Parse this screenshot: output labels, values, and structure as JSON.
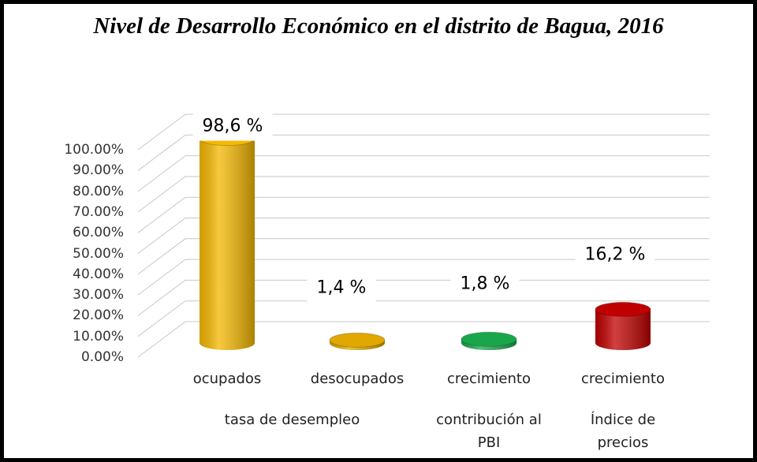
{
  "chart_data": {
    "type": "bar",
    "title": "Nivel de Desarrollo Económico en el distrito de Bagua, 2016",
    "categories": [
      "ocupados",
      "desocupados",
      "crecimiento",
      "crecimiento"
    ],
    "groups": [
      "tasa de desempleo",
      "contribución al PBI",
      "Índice de precios"
    ],
    "values": [
      98.6,
      1.4,
      1.8,
      16.2
    ],
    "value_labels": [
      "98,6 %",
      "1,4 %",
      "1,8 %",
      "16,2 %"
    ],
    "colors": [
      "#f5b800",
      "#e0a800",
      "#19a64a",
      "#c00000"
    ],
    "ylim": [
      0,
      100
    ],
    "yticks": [
      {
        "value": 0,
        "label": "0.00%"
      },
      {
        "value": 10,
        "label": "10.00%"
      },
      {
        "value": 20,
        "label": "20.00%"
      },
      {
        "value": 30,
        "label": "30.00%"
      },
      {
        "value": 40,
        "label": "40.00%"
      },
      {
        "value": 50,
        "label": "50.00%"
      },
      {
        "value": 60,
        "label": "60.00%"
      },
      {
        "value": 70,
        "label": "70.00%"
      },
      {
        "value": 80,
        "label": "80.00%"
      },
      {
        "value": 90,
        "label": "90.00%"
      },
      {
        "value": 100,
        "label": "100.00%"
      }
    ],
    "grid": true
  }
}
